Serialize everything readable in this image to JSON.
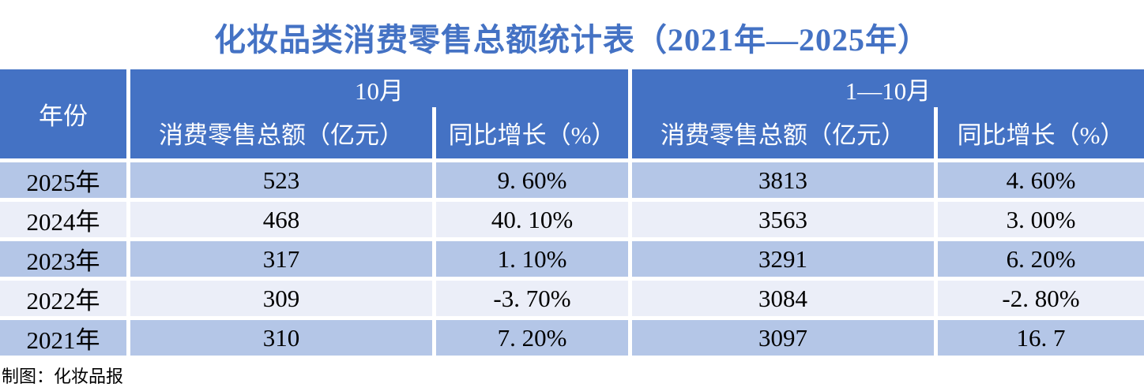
{
  "title": "化妆品类消费零售总额统计表（2021年—2025年）",
  "colors": {
    "header_bg": "#4472C4",
    "row_dark_bg": "#B4C6E7",
    "row_light_bg": "#EBEEF8",
    "title_color": "#4472C4",
    "grid_gap": "#FFFFFF"
  },
  "table": {
    "year_header": "年份",
    "groups": [
      {
        "label": "10月",
        "columns": [
          "消费零售总额（亿元）",
          "同比增长（%）"
        ]
      },
      {
        "label": "1—10月",
        "columns": [
          "消费零售总额（亿元）",
          "同比增长（%）"
        ]
      }
    ],
    "rows": [
      {
        "year": "2025年",
        "oct_total": "523",
        "oct_growth": "9. 60%",
        "ytd_total": "3813",
        "ytd_growth": "4. 60%"
      },
      {
        "year": "2024年",
        "oct_total": "468",
        "oct_growth": "40. 10%",
        "ytd_total": "3563",
        "ytd_growth": "3. 00%"
      },
      {
        "year": "2023年",
        "oct_total": "317",
        "oct_growth": "1. 10%",
        "ytd_total": "3291",
        "ytd_growth": "6. 20%"
      },
      {
        "year": "2022年",
        "oct_total": "309",
        "oct_growth": "-3. 70%",
        "ytd_total": "3084",
        "ytd_growth": "-2. 80%"
      },
      {
        "year": "2021年",
        "oct_total": "310",
        "oct_growth": "7. 20%",
        "ytd_total": "3097",
        "ytd_growth": "16. 7"
      }
    ]
  },
  "footer": {
    "credit": "制图：化妆品报"
  },
  "chart_data": {
    "type": "table",
    "title": "化妆品类消费零售总额统计表（2021年—2025年）",
    "columns": [
      "年份",
      "10月 消费零售总额（亿元）",
      "10月 同比增长（%）",
      "1—10月 消费零售总额（亿元）",
      "1—10月 同比增长（%）"
    ],
    "rows": [
      [
        "2025年",
        523,
        9.6,
        3813,
        4.6
      ],
      [
        "2024年",
        468,
        40.1,
        3563,
        3.0
      ],
      [
        "2023年",
        317,
        1.1,
        3291,
        6.2
      ],
      [
        "2022年",
        309,
        -3.7,
        3084,
        -2.8
      ],
      [
        "2021年",
        310,
        7.2,
        3097,
        16.7
      ]
    ],
    "source": "制图：化妆品报"
  }
}
